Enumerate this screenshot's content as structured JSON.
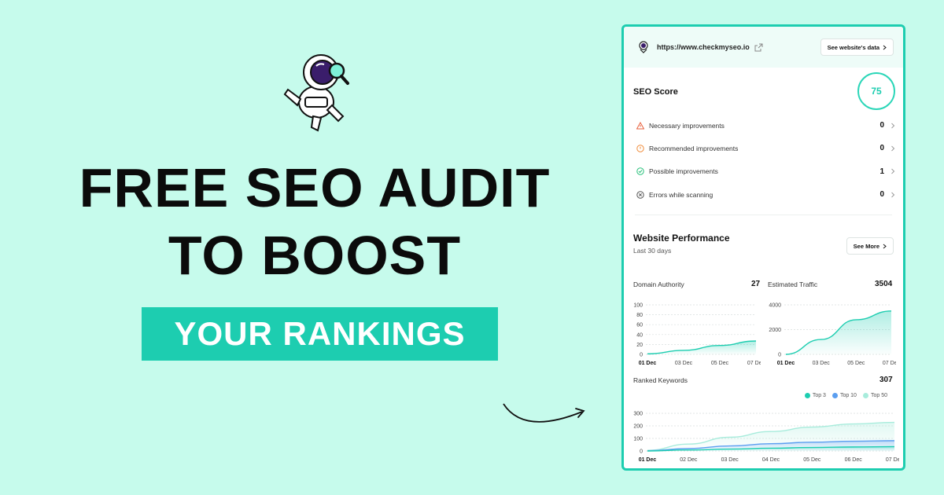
{
  "hero": {
    "headline_line1": "FREE SEO AUDIT",
    "headline_line2": "TO BOOST",
    "tagline": "YOUR RANKINGS"
  },
  "card": {
    "site_url": "https://www.checkmyseo.io",
    "site_button": "See website's data",
    "seo_score_title": "SEO Score",
    "seo_score": "75",
    "improvements": [
      {
        "label": "Necessary improvements",
        "count": "0",
        "icon": "warning-triangle-icon",
        "color": "#e8603c"
      },
      {
        "label": "Recommended improvements",
        "count": "0",
        "icon": "alert-circle-icon",
        "color": "#f08c3a"
      },
      {
        "label": "Possible improvements",
        "count": "1",
        "icon": "check-circle-icon",
        "color": "#27c07a"
      },
      {
        "label": "Errors while scanning",
        "count": "0",
        "icon": "x-circle-icon",
        "color": "#555555"
      }
    ],
    "performance_title": "Website Performance",
    "performance_sub": "Last 30 days",
    "see_more": "See More",
    "domain_authority_label": "Domain Authority",
    "domain_authority_value": "27",
    "traffic_label": "Estimated Traffic",
    "traffic_value": "3504",
    "ranked_keywords_label": "Ranked Keywords",
    "ranked_keywords_value": "307"
  },
  "colors": {
    "accent": "#1dcdb0",
    "background": "#c6fbec",
    "top3": "#1dcdb0",
    "top10": "#5b9ef0",
    "top50": "#a8ecdc"
  },
  "chart_data": [
    {
      "type": "area",
      "x": [
        "01 Dec",
        "03 Dec",
        "05 Dec",
        "07 Dec"
      ],
      "y_ticks": [
        0,
        20,
        40,
        60,
        80,
        100
      ],
      "ylim": [
        0,
        100
      ],
      "series": [
        {
          "values": [
            1,
            8,
            18,
            27
          ]
        }
      ]
    },
    {
      "type": "area",
      "x": [
        "01 Dec",
        "03 Dec",
        "05 Dec",
        "07 Dec"
      ],
      "y_ticks": [
        0,
        2000,
        4000
      ],
      "ylim": [
        0,
        4000
      ],
      "series": [
        {
          "values": [
            0,
            1200,
            2800,
            3504
          ]
        }
      ]
    },
    {
      "type": "area",
      "x": [
        "01 Dec",
        "02 Dec",
        "03 Dec",
        "04 Dec",
        "05 Dec",
        "06 Dec",
        "07 Dec"
      ],
      "y_ticks": [
        0,
        100,
        200,
        300
      ],
      "ylim": [
        0,
        300
      ],
      "legend": "top-right",
      "series": [
        {
          "name": "Top 3",
          "values": [
            0,
            8,
            15,
            22,
            28,
            32,
            35
          ]
        },
        {
          "name": "Top 10",
          "values": [
            2,
            20,
            40,
            58,
            70,
            78,
            82
          ]
        },
        {
          "name": "Top 50",
          "values": [
            5,
            55,
            110,
            155,
            190,
            215,
            228
          ]
        }
      ]
    }
  ]
}
